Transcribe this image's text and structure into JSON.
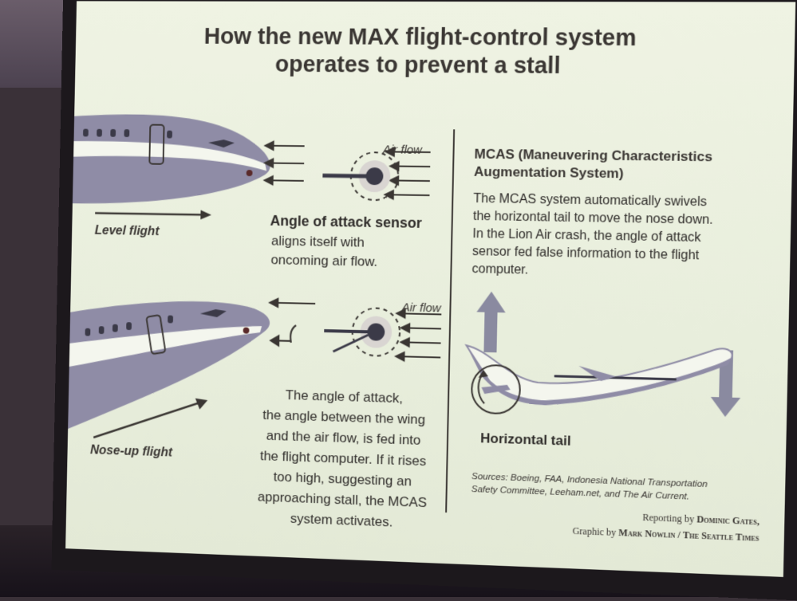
{
  "title": {
    "line1": "How the new MAX flight-control system",
    "line2": "operates to prevent a stall"
  },
  "left_top": {
    "air_flow": "Air flow",
    "level_flight": "Level flight",
    "sensor_title": "Angle of attack sensor",
    "sensor_line1": "aligns itself with",
    "sensor_line2": "oncoming air flow."
  },
  "left_bottom": {
    "air_flow": "Air flow",
    "nose_up": "Nose-up flight",
    "para_lines": [
      "The angle of attack,",
      "the angle between the wing",
      "and the air flow, is fed into",
      "the flight computer. If it rises",
      "too high, suggesting an",
      "approaching stall, the MCAS",
      "system activates."
    ]
  },
  "right": {
    "mcas_title_line1": "MCAS (Maneuvering Characteristics",
    "mcas_title_line2": "Augmentation System)",
    "mcas_body_lines": [
      "The MCAS system automatically swivels",
      "the horizontal tail to move the nose down.",
      "In the Lion Air crash, the angle of attack",
      "sensor fed false information to the flight",
      "computer."
    ],
    "horizontal_tail": "Horizontal tail",
    "sources_line1": "Sources: Boeing, FAA, Indonesia National Transportation",
    "sources_line2": "Safety Committee, Leeham.net, and The Air Current."
  },
  "credits": {
    "reporting_prefix": "Reporting by",
    "reporting_name": "Dominic Gates,",
    "graphic_prefix": "Graphic by",
    "graphic_name": "Mark Nowlin / The Seattle Times"
  },
  "colors": {
    "fuselage": "#8f8ca6",
    "fuselage_light": "#f4f6ee",
    "ink": "#3a3633",
    "sensor_center": "#3b3a48"
  }
}
